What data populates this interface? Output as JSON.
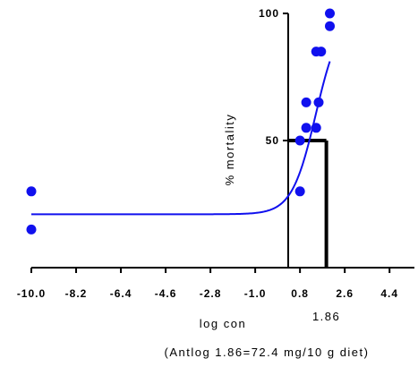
{
  "chart_data": {
    "type": "scatter",
    "xlabel": "log con",
    "ylabel": "% mortality",
    "xlim": [
      -10.0,
      5.4
    ],
    "ylim": [
      0,
      100
    ],
    "x_ticks": [
      -10.0,
      -8.2,
      -6.4,
      -4.6,
      -2.8,
      -1.0,
      0.8,
      2.6,
      4.4
    ],
    "x_tick_labels": [
      "-10.0",
      "-8.2",
      "-6.4",
      "-4.6",
      "-2.8",
      "-1.0",
      "0.8",
      "2.6",
      "4.4"
    ],
    "y_ticks": [
      50,
      100
    ],
    "y_tick_labels": [
      "50",
      "100"
    ],
    "points": [
      {
        "x": -10.0,
        "y": 30
      },
      {
        "x": -10.0,
        "y": 15
      },
      {
        "x": 0.8,
        "y": 30
      },
      {
        "x": 0.8,
        "y": 50
      },
      {
        "x": 1.05,
        "y": 55
      },
      {
        "x": 1.05,
        "y": 65
      },
      {
        "x": 1.45,
        "y": 55
      },
      {
        "x": 1.55,
        "y": 65
      },
      {
        "x": 1.45,
        "y": 85
      },
      {
        "x": 1.65,
        "y": 85
      },
      {
        "x": 2.0,
        "y": 95
      },
      {
        "x": 2.0,
        "y": 100
      }
    ],
    "fit_curve": {
      "bottom": 21,
      "top": 100,
      "logEC50": 1.44,
      "hill_slope": 0.9,
      "x_range": [
        -10.0,
        2.0
      ]
    },
    "ld50_x": 1.86,
    "ld50_y": 50,
    "ld50_label": "1.86",
    "annotation": "(Antlog 1.86=72.4 mg/10 g diet)",
    "colors": {
      "points": "#1010ee",
      "curve": "#1010ee",
      "axes": "#000000"
    }
  }
}
